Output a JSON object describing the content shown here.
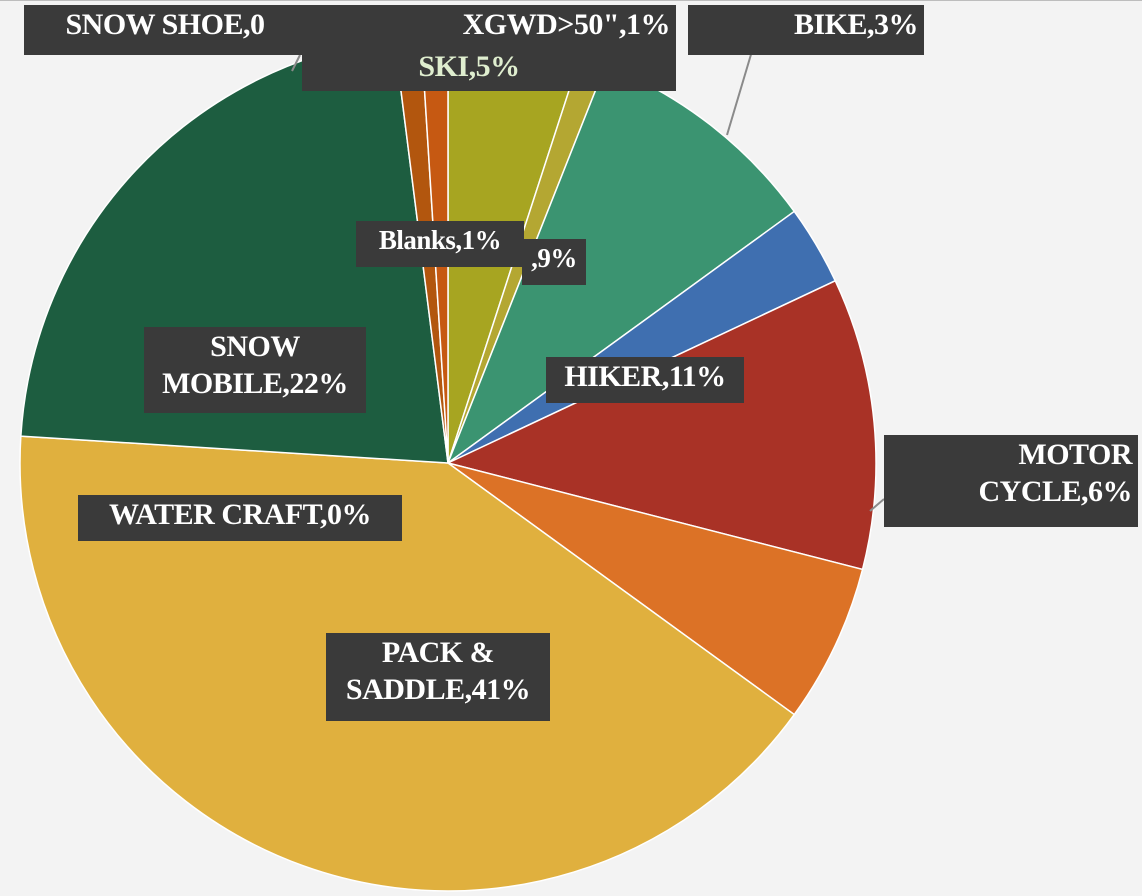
{
  "chart_data": {
    "type": "pie",
    "title": "",
    "slices": [
      {
        "label": "SKI,5%",
        "value": 5,
        "color": "#a7a521"
      },
      {
        "label": "",
        "value": 1,
        "color": "#b4a732"
      },
      {
        "label": ",9%",
        "value": 9,
        "color": "#3b9471"
      },
      {
        "label": "BIKE,3%",
        "value": 3,
        "color": "#3f6fb0"
      },
      {
        "label": "HIKER,11%",
        "value": 11,
        "color": "#a93226"
      },
      {
        "label": "MOTOR\nCYCLE,6%",
        "value": 6,
        "color": "#dc7226"
      },
      {
        "label": "PACK &\nSADDLE,41%",
        "value": 41,
        "color": "#e0b03e"
      },
      {
        "label": "WATER CRAFT,0%",
        "value": 0,
        "color": "#1e5540"
      },
      {
        "label": "SNOW\nMOBILE,22%",
        "value": 22,
        "color": "#1d5d40"
      },
      {
        "label": "SNOW SHOE,0",
        "value": 0,
        "color": "#6e1a17"
      },
      {
        "label": "Blanks,1%",
        "value": 1,
        "color": "#b2560e"
      },
      {
        "label": "XGWD>50\",1%",
        "value": 1,
        "color": "#c65912"
      }
    ]
  }
}
